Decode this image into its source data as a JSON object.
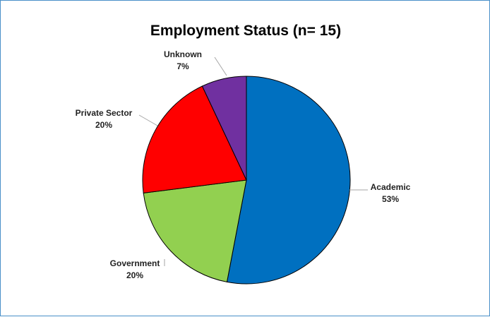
{
  "chart_data": {
    "type": "pie",
    "title": "Employment Status (n= 15)",
    "slices": [
      {
        "label": "Academic",
        "value": 53,
        "pct_label": "53%",
        "color": "#0070C0"
      },
      {
        "label": "Government",
        "value": 20,
        "pct_label": "20%",
        "color": "#92D050"
      },
      {
        "label": "Private Sector",
        "value": 20,
        "pct_label": "20%",
        "color": "#FF0000"
      },
      {
        "label": "Unknown",
        "value": 7,
        "pct_label": "7%",
        "color": "#7030A0"
      }
    ],
    "start_angle_deg": 0,
    "direction": "clockwise",
    "legend": "none"
  }
}
